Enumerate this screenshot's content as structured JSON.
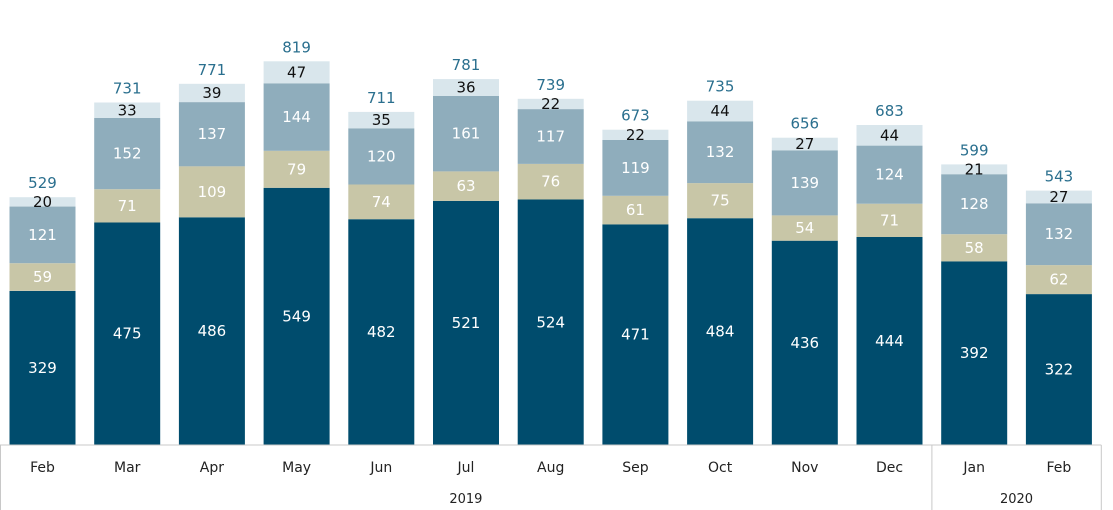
{
  "chart_data": {
    "type": "bar",
    "stacked": true,
    "title": "",
    "xlabel": "",
    "ylabel": "",
    "ylim": [
      0,
      830
    ],
    "grid": false,
    "legend": "none",
    "categories": [
      "Feb",
      "Mar",
      "Apr",
      "May",
      "Jun",
      "Jul",
      "Aug",
      "Sep",
      "Oct",
      "Nov",
      "Dec",
      "Jan",
      "Feb"
    ],
    "year_groups": [
      {
        "label": "2019",
        "count": 11
      },
      {
        "label": "2020",
        "count": 2
      }
    ],
    "series": [
      {
        "values": [
          329,
          475,
          486,
          549,
          482,
          521,
          524,
          471,
          484,
          436,
          444,
          392,
          322
        ],
        "color": "#004c6d",
        "label_color": "#ffffff"
      },
      {
        "values": [
          59,
          71,
          109,
          79,
          74,
          63,
          76,
          61,
          75,
          54,
          71,
          58,
          62
        ],
        "color": "#c8c6a7",
        "label_color": "#ffffff"
      },
      {
        "values": [
          121,
          152,
          137,
          144,
          120,
          161,
          117,
          119,
          132,
          139,
          124,
          128,
          132
        ],
        "color": "#8fadbc",
        "label_color": "#ffffff"
      },
      {
        "values": [
          20,
          33,
          39,
          47,
          35,
          36,
          22,
          22,
          44,
          27,
          44,
          21,
          27
        ],
        "color": "#d9e6ec",
        "label_color": "#111111"
      }
    ],
    "totals": [
      "529",
      "731",
      "771",
      "819",
      "711",
      "781",
      "739",
      "673",
      "735",
      "656",
      "683",
      "599",
      "543"
    ]
  }
}
